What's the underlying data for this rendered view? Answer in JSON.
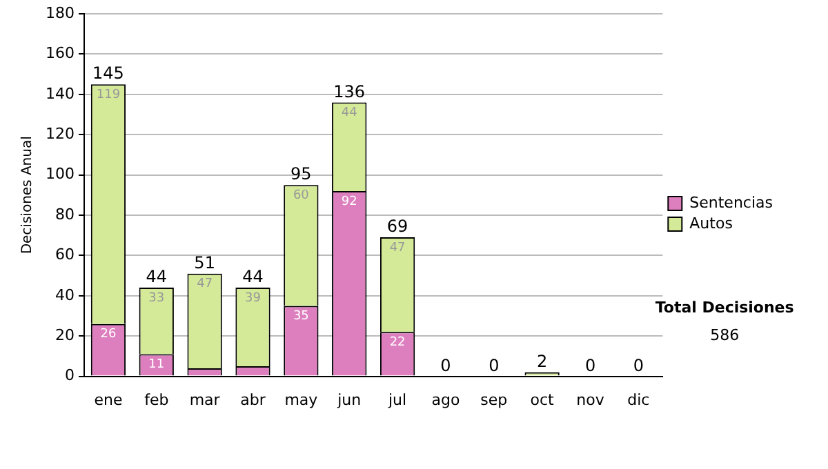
{
  "chart_data": {
    "type": "bar",
    "stacked": true,
    "ylabel": "Decisiones Anual",
    "categories": [
      "ene",
      "feb",
      "mar",
      "abr",
      "may",
      "jun",
      "jul",
      "ago",
      "sep",
      "oct",
      "nov",
      "dic"
    ],
    "series": [
      {
        "name": "Sentencias",
        "color": "#dd7fbf",
        "values": [
          26,
          11,
          4,
          5,
          35,
          92,
          22,
          0,
          0,
          0,
          0,
          0
        ],
        "value_labels": [
          "26",
          "11",
          null,
          null,
          "35",
          "92",
          "22",
          null,
          null,
          null,
          null,
          null
        ]
      },
      {
        "name": "Autos",
        "color": "#d4ea98",
        "values": [
          119,
          33,
          47,
          39,
          60,
          44,
          47,
          0,
          0,
          2,
          0,
          0
        ],
        "value_labels": [
          "119",
          "33",
          "47",
          "39",
          "60",
          "44",
          "47",
          null,
          null,
          null,
          null,
          null
        ]
      }
    ],
    "totals": [
      "145",
      "44",
      "51",
      "44",
      "95",
      "136",
      "69",
      "0",
      "0",
      "2",
      "0",
      "0"
    ],
    "ylim": [
      0,
      180
    ],
    "yticks": [
      0,
      20,
      40,
      60,
      80,
      100,
      120,
      140,
      160,
      180
    ],
    "grid": "y",
    "legend": "right",
    "annotations": [
      "Total Decisiones",
      "586"
    ]
  }
}
